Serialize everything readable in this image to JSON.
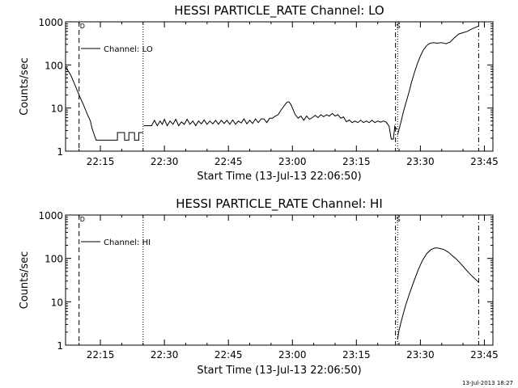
{
  "timestamp": "13-Jul-2013 18:27",
  "chart_data": [
    {
      "type": "line",
      "title": "HESSI PARTICLE_RATE Channel: LO",
      "xlabel": "Start Time (13-Jul-13 22:06:50)",
      "ylabel": "Counts/sec",
      "yscale": "log",
      "ylim": [
        1,
        1000
      ],
      "yticks": [
        "1",
        "10",
        "100",
        "1000"
      ],
      "xlim": [
        "22:06:50",
        "23:47:00"
      ],
      "xticks": [
        "22:15",
        "22:30",
        "22:45",
        "23:00",
        "23:15",
        "23:30",
        "23:45"
      ],
      "legend": {
        "position": "top-left",
        "entries": [
          "Channel: LO"
        ]
      },
      "markers": [
        {
          "time": "22:10:00",
          "style": "dashed",
          "label": "D"
        },
        {
          "time": "22:25:00",
          "style": "dotted",
          "label": ""
        },
        {
          "time": "23:24:10",
          "style": "dashdot",
          "label": "S"
        },
        {
          "time": "23:24:40",
          "style": "dotted",
          "label": ""
        },
        {
          "time": "23:43:40",
          "style": "dashdot",
          "label": ""
        }
      ],
      "series": [
        {
          "name": "Channel: LO",
          "segments": [
            [
              [
                "22:06:50",
                90
              ],
              [
                "22:08:00",
                60
              ],
              [
                "22:09:00",
                35
              ],
              [
                "22:10:00",
                20
              ],
              [
                "22:11:00",
                12
              ],
              [
                "22:12:00",
                7
              ],
              [
                "22:12:40",
                5
              ],
              [
                "22:13:00",
                3.5
              ],
              [
                "22:13:30",
                2.5
              ],
              [
                "22:14:00",
                1.8
              ],
              [
                "22:19:00",
                1.8
              ],
              [
                "22:19:00",
                2.7
              ],
              [
                "22:20:40",
                2.7
              ],
              [
                "22:20:40",
                1.8
              ],
              [
                "22:21:40",
                1.8
              ],
              [
                "22:21:40",
                2.7
              ],
              [
                "22:23:00",
                2.7
              ],
              [
                "22:23:00",
                1.8
              ],
              [
                "22:24:00",
                1.8
              ],
              [
                "22:24:00",
                2.7
              ],
              [
                "22:25:00",
                2.7
              ]
            ],
            [
              [
                "22:25:10",
                3.9
              ],
              [
                "22:27:00",
                3.9
              ],
              [
                "22:27:40",
                5.2
              ],
              [
                "22:28:20",
                3.9
              ],
              [
                "22:29:00",
                5
              ],
              [
                "22:29:30",
                4.2
              ],
              [
                "22:30:00",
                5.5
              ],
              [
                "22:30:40",
                3.9
              ],
              [
                "22:31:20",
                5
              ],
              [
                "22:32:00",
                4.2
              ],
              [
                "22:32:40",
                5.5
              ],
              [
                "22:33:20",
                3.9
              ],
              [
                "22:34:00",
                4.8
              ],
              [
                "22:34:40",
                4.2
              ],
              [
                "22:35:20",
                5.5
              ],
              [
                "22:36:00",
                4.2
              ],
              [
                "22:36:40",
                5
              ],
              [
                "22:37:20",
                3.9
              ],
              [
                "22:38:00",
                5
              ],
              [
                "22:38:40",
                4.3
              ],
              [
                "22:39:20",
                5.3
              ],
              [
                "22:40:00",
                4.2
              ],
              [
                "22:40:40",
                5
              ],
              [
                "22:41:20",
                4.3
              ],
              [
                "22:42:00",
                5.2
              ],
              [
                "22:42:40",
                4.2
              ],
              [
                "22:43:20",
                5.2
              ],
              [
                "22:44:00",
                4.4
              ],
              [
                "22:44:40",
                5.2
              ],
              [
                "22:45:20",
                4.2
              ],
              [
                "22:46:00",
                5.3
              ],
              [
                "22:46:40",
                4.2
              ],
              [
                "22:47:20",
                5
              ],
              [
                "22:48:00",
                4.5
              ],
              [
                "22:48:40",
                5.6
              ],
              [
                "22:49:20",
                4.3
              ],
              [
                "22:50:00",
                5.2
              ],
              [
                "22:50:40",
                4.4
              ],
              [
                "22:51:20",
                5.6
              ],
              [
                "22:52:00",
                4.6
              ],
              [
                "22:52:40",
                5.6
              ],
              [
                "22:53:20",
                5.6
              ],
              [
                "22:54:00",
                4.6
              ],
              [
                "22:54:40",
                5.8
              ],
              [
                "22:55:20",
                5.8
              ],
              [
                "22:56:00",
                6.5
              ],
              [
                "22:56:40",
                7
              ],
              [
                "22:57:20",
                9
              ],
              [
                "22:58:00",
                11
              ],
              [
                "22:58:40",
                13.5
              ],
              [
                "22:59:10",
                14
              ],
              [
                "22:59:40",
                12
              ],
              [
                "23:00:00",
                10
              ],
              [
                "23:00:40",
                7
              ],
              [
                "23:01:20",
                5.8
              ],
              [
                "23:02:00",
                6.5
              ],
              [
                "23:02:40",
                5.2
              ],
              [
                "23:03:20",
                6.5
              ],
              [
                "23:04:00",
                5.5
              ],
              [
                "23:04:40",
                6
              ],
              [
                "23:05:20",
                6.8
              ],
              [
                "23:06:00",
                6
              ],
              [
                "23:06:40",
                7
              ],
              [
                "23:07:20",
                6.3
              ],
              [
                "23:08:00",
                7
              ],
              [
                "23:08:40",
                6.5
              ],
              [
                "23:09:20",
                7.5
              ],
              [
                "23:10:00",
                6.5
              ],
              [
                "23:10:40",
                7
              ],
              [
                "23:11:20",
                5.8
              ],
              [
                "23:12:00",
                6.2
              ],
              [
                "23:12:40",
                4.8
              ],
              [
                "23:13:20",
                5.3
              ],
              [
                "23:14:00",
                4.6
              ],
              [
                "23:14:40",
                5
              ],
              [
                "23:15:20",
                4.6
              ],
              [
                "23:16:00",
                5.2
              ],
              [
                "23:16:40",
                4.6
              ],
              [
                "23:17:20",
                5
              ],
              [
                "23:18:00",
                4.6
              ],
              [
                "23:18:40",
                5.2
              ],
              [
                "23:19:20",
                4.6
              ],
              [
                "23:20:00",
                5
              ],
              [
                "23:20:40",
                4.7
              ],
              [
                "23:21:20",
                5
              ],
              [
                "23:22:00",
                4.7
              ],
              [
                "23:22:40",
                3.8
              ],
              [
                "23:23:10",
                1.9
              ],
              [
                "23:23:40",
                1.9
              ],
              [
                "23:24:00",
                3.8
              ],
              [
                "23:24:30",
                3.2
              ]
            ],
            [
              [
                "23:24:40",
                2.4
              ],
              [
                "23:25:00",
                3.2
              ],
              [
                "23:25:30",
                5
              ],
              [
                "23:26:00",
                8
              ],
              [
                "23:26:30",
                12
              ],
              [
                "23:27:00",
                18
              ],
              [
                "23:27:30",
                27
              ],
              [
                "23:28:00",
                42
              ],
              [
                "23:28:40",
                70
              ],
              [
                "23:29:20",
                110
              ],
              [
                "23:30:00",
                160
              ],
              [
                "23:30:40",
                220
              ],
              [
                "23:31:20",
                270
              ],
              [
                "23:32:00",
                310
              ],
              [
                "23:33:00",
                330
              ],
              [
                "23:34:00",
                320
              ],
              [
                "23:35:00",
                330
              ],
              [
                "23:36:00",
                310
              ],
              [
                "23:37:00",
                340
              ],
              [
                "23:38:00",
                430
              ],
              [
                "23:39:00",
                520
              ],
              [
                "23:40:00",
                560
              ],
              [
                "23:41:00",
                600
              ],
              [
                "23:42:00",
                680
              ],
              [
                "23:43:00",
                750
              ],
              [
                "23:43:40",
                800
              ]
            ]
          ]
        }
      ]
    },
    {
      "type": "line",
      "title": "HESSI PARTICLE_RATE Channel: HI",
      "xlabel": "Start Time (13-Jul-13 22:06:50)",
      "ylabel": "Counts/sec",
      "yscale": "log",
      "ylim": [
        1,
        1000
      ],
      "yticks": [
        "1",
        "10",
        "100",
        "1000"
      ],
      "xlim": [
        "22:06:50",
        "23:47:00"
      ],
      "xticks": [
        "22:15",
        "22:30",
        "22:45",
        "23:00",
        "23:15",
        "23:30",
        "23:45"
      ],
      "legend": {
        "position": "top-left",
        "entries": [
          "Channel: HI"
        ]
      },
      "markers": [
        {
          "time": "22:10:00",
          "style": "dashed",
          "label": "D"
        },
        {
          "time": "22:25:00",
          "style": "dotted",
          "label": ""
        },
        {
          "time": "23:24:10",
          "style": "dashdot",
          "label": "S"
        },
        {
          "time": "23:24:40",
          "style": "dotted",
          "label": ""
        },
        {
          "time": "23:43:40",
          "style": "dashdot",
          "label": ""
        }
      ],
      "series": [
        {
          "name": "Channel: HI",
          "segments": [
            [
              [
                "23:24:40",
                1.4
              ],
              [
                "23:25:00",
                2.2
              ],
              [
                "23:25:40",
                4
              ],
              [
                "23:26:30",
                8
              ],
              [
                "23:27:30",
                16
              ],
              [
                "23:28:30",
                30
              ],
              [
                "23:29:30",
                55
              ],
              [
                "23:30:30",
                90
              ],
              [
                "23:31:30",
                130
              ],
              [
                "23:32:30",
                160
              ],
              [
                "23:33:30",
                175
              ],
              [
                "23:34:30",
                170
              ],
              [
                "23:35:30",
                160
              ],
              [
                "23:36:30",
                140
              ],
              [
                "23:37:30",
                115
              ],
              [
                "23:38:30",
                95
              ],
              [
                "23:39:30",
                75
              ],
              [
                "23:40:30",
                58
              ],
              [
                "23:41:30",
                45
              ],
              [
                "23:42:30",
                36
              ],
              [
                "23:43:40",
                28
              ]
            ]
          ]
        }
      ]
    }
  ]
}
